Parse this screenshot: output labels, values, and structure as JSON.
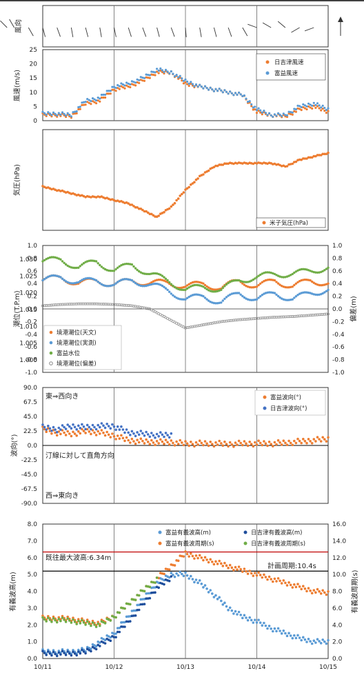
{
  "chart_data": [
    {
      "type": "wind-direction",
      "ylabel": "風向",
      "days": [
        "10/11",
        "10/12",
        "10/13",
        "10/14",
        "10/15"
      ],
      "arrows": [
        {
          "d": 10.3,
          "deg": 200
        },
        {
          "d": 10.5,
          "deg": 225
        },
        {
          "d": 10.6,
          "deg": 240
        },
        {
          "d": 10.8,
          "deg": 60
        },
        {
          "d": 11.0,
          "deg": 75
        },
        {
          "d": 11.2,
          "deg": 70
        },
        {
          "d": 11.4,
          "deg": 80
        },
        {
          "d": 11.6,
          "deg": 75
        },
        {
          "d": 11.8,
          "deg": 80
        },
        {
          "d": 12.0,
          "deg": 78
        },
        {
          "d": 12.2,
          "deg": 72
        },
        {
          "d": 12.4,
          "deg": 70
        },
        {
          "d": 12.6,
          "deg": 75
        },
        {
          "d": 12.8,
          "deg": 70
        },
        {
          "d": 13.0,
          "deg": 85
        },
        {
          "d": 13.2,
          "deg": 80
        },
        {
          "d": 13.4,
          "deg": 75
        },
        {
          "d": 13.6,
          "deg": 70
        },
        {
          "d": 13.8,
          "deg": 60
        },
        {
          "d": 14.0,
          "deg": 200
        },
        {
          "d": 14.2,
          "deg": 210
        },
        {
          "d": 14.4,
          "deg": 220
        },
        {
          "d": 14.6,
          "deg": 150
        },
        {
          "d": 14.8,
          "deg": 160
        }
      ]
    },
    {
      "type": "scatter",
      "ylabel": "風速(m/s)",
      "ylim": [
        0,
        25
      ],
      "yticks": [
        0,
        5,
        10,
        15,
        20,
        25
      ],
      "legend": [
        "日吉津風速",
        "富益風速"
      ],
      "series": [
        {
          "name": "日吉津風速",
          "color": "#ed7d31",
          "x": [
            11.0,
            11.2,
            11.4,
            11.6,
            11.8,
            12.0,
            12.2,
            12.4,
            12.6,
            12.8,
            13.0,
            13.2,
            13.4,
            13.6,
            13.8,
            14.0,
            14.2,
            14.4,
            14.6,
            14.8,
            15.0
          ],
          "y": [
            2,
            2,
            1.5,
            6,
            7,
            11,
            12,
            14,
            17,
            17,
            13,
            12,
            11,
            10,
            9,
            3,
            2,
            1.5,
            4,
            5,
            3
          ]
        },
        {
          "name": "富益風速",
          "color": "#5b9bd5",
          "x": [
            11.0,
            11.2,
            11.4,
            11.6,
            11.8,
            12.0,
            12.2,
            12.4,
            12.6,
            12.8,
            13.0,
            13.2,
            13.4,
            13.6,
            13.8,
            14.0,
            14.2,
            14.4,
            14.6,
            14.8,
            15.0
          ],
          "y": [
            2.5,
            2.5,
            2,
            7,
            8,
            12,
            13,
            15,
            18,
            17,
            14,
            12,
            11,
            10,
            9,
            4,
            2,
            2,
            5,
            6,
            4
          ]
        }
      ]
    },
    {
      "type": "scatter",
      "ylabel": "気圧(hPa)",
      "ylim": [
        1000,
        1030
      ],
      "yticks": [
        "1.000",
        "1.005",
        "1.010",
        "1.015",
        "1.020",
        "1.025",
        "1.030"
      ],
      "legend": [
        "米子気圧(hPa)"
      ],
      "series": [
        {
          "name": "米子気圧(hPa)",
          "color": "#ed7d31",
          "x": [
            11.0,
            11.2,
            11.4,
            11.6,
            11.8,
            12.0,
            12.2,
            12.4,
            12.6,
            12.8,
            13.0,
            13.2,
            13.4,
            13.6,
            13.8,
            14.0,
            14.2,
            14.4,
            14.6,
            14.8,
            15.0
          ],
          "y": [
            1013,
            1012,
            1011,
            1010,
            1010,
            1009,
            1008,
            1006,
            1004,
            1007,
            1012,
            1016,
            1019,
            1020,
            1020,
            1020,
            1020,
            1019,
            1021,
            1022,
            1023
          ]
        }
      ]
    },
    {
      "type": "scatter",
      "ylabel": "潮位(T.P.m)",
      "ylabel2": "偏差(m)",
      "ylim": [
        -1.0,
        1.0
      ],
      "yticks": [
        "-1.0",
        "-0.8",
        "-0.6",
        "-0.4",
        "-0.2",
        "0.0",
        "0.2",
        "0.4",
        "0.6",
        "0.8",
        "1.0"
      ],
      "legend": [
        "境港潮位(天文)",
        "境港潮位(実測)",
        "富益水位",
        "境港潮位(偏差)"
      ],
      "series": [
        {
          "name": "境港潮位(天文)",
          "color": "#ed7d31",
          "x": [
            11.0,
            11.25,
            11.5,
            11.75,
            12.0,
            12.25,
            12.5,
            12.75,
            13.0,
            13.25,
            13.5,
            13.75,
            14.0,
            14.25,
            14.5,
            14.75,
            15.0
          ],
          "y": [
            0.45,
            0.5,
            0.4,
            0.45,
            0.38,
            0.45,
            0.4,
            0.42,
            0.35,
            0.4,
            0.32,
            0.45,
            0.35,
            0.45,
            0.35,
            0.45,
            0.4
          ]
        },
        {
          "name": "境港潮位(実測)",
          "color": "#5b9bd5",
          "x": [
            11.0,
            11.25,
            11.5,
            11.75,
            12.0,
            12.25,
            12.5,
            12.75,
            13.0,
            13.25,
            13.5,
            13.75,
            14.0,
            14.25,
            14.5,
            14.75,
            15.0
          ],
          "y": [
            0.45,
            0.5,
            0.42,
            0.45,
            0.38,
            0.45,
            0.38,
            0.3,
            0.15,
            0.2,
            0.1,
            0.25,
            0.15,
            0.25,
            0.15,
            0.25,
            0.3
          ]
        },
        {
          "name": "富益水位",
          "color": "#70ad47",
          "x": [
            11.0,
            11.25,
            11.5,
            11.75,
            12.0,
            12.25,
            12.5,
            12.75,
            13.0,
            13.25,
            13.5,
            13.75,
            14.0,
            14.25,
            14.5,
            14.75,
            15.0
          ],
          "y": [
            0.75,
            0.78,
            0.65,
            0.75,
            0.6,
            0.7,
            0.55,
            0.45,
            0.3,
            0.35,
            0.3,
            0.45,
            0.5,
            0.55,
            0.55,
            0.6,
            0.65
          ]
        },
        {
          "name": "境港潮位(偏差)",
          "color": "#888888",
          "x": [
            11.0,
            11.25,
            11.5,
            11.75,
            12.0,
            12.25,
            12.5,
            12.75,
            13.0,
            13.25,
            13.5,
            13.75,
            14.0,
            14.25,
            14.5,
            14.75,
            15.0
          ],
          "y": [
            0.05,
            0.07,
            0.08,
            0.08,
            0.07,
            0.05,
            0.0,
            -0.15,
            -0.3,
            -0.25,
            -0.2,
            -0.17,
            -0.15,
            -0.13,
            -0.12,
            -0.1,
            -0.08
          ]
        }
      ]
    },
    {
      "type": "scatter",
      "ylabel": "波向(°)",
      "ylim": [
        -90,
        90
      ],
      "yticks": [
        "-90.0",
        "-67.5",
        "-45.0",
        "-22.5",
        "0.0",
        "22.5",
        "45.0",
        "67.5",
        "90.0"
      ],
      "legend": [
        "富益波向(°)",
        "日吉津波向(°)"
      ],
      "annotations": [
        "東⇒西向き",
        "汀線に対して直角方向",
        "西⇒東向き"
      ],
      "series": [
        {
          "name": "富益波向(°)",
          "color": "#ed7d31",
          "x": [
            11.0,
            11.2,
            11.4,
            11.6,
            11.8,
            12.0,
            12.2,
            12.4,
            12.6,
            12.8,
            13.0,
            13.2,
            13.4,
            13.6,
            13.8,
            14.0,
            14.2,
            14.4,
            14.6,
            14.8,
            15.0
          ],
          "y": [
            25,
            20,
            18,
            22,
            20,
            15,
            8,
            6,
            5,
            5,
            3,
            3,
            3,
            2,
            3,
            3,
            3,
            4,
            6,
            8,
            10
          ]
        },
        {
          "name": "日吉津波向(°)",
          "color": "#4472c4",
          "x": [
            11.0,
            11.2,
            11.4,
            11.6,
            11.8,
            12.0,
            12.2,
            12.4,
            12.6,
            12.8
          ],
          "y": [
            28,
            25,
            30,
            28,
            30,
            30,
            20,
            18,
            16,
            16
          ]
        }
      ]
    },
    {
      "type": "scatter",
      "ylabel": "有義波高(m)",
      "ylabel2": "有義波周期(s)",
      "ylim": [
        0,
        8
      ],
      "y2lim": [
        0,
        16
      ],
      "yticks": [
        "0.0",
        "1.0",
        "2.0",
        "3.0",
        "4.0",
        "5.0",
        "6.0",
        "7.0",
        "8.0"
      ],
      "y2ticks": [
        "0.0",
        "2.0",
        "4.0",
        "6.0",
        "8.0",
        "10.0",
        "12.0",
        "14.0",
        "16.0"
      ],
      "xlabels": [
        "10/11",
        "10/12",
        "10/13",
        "10/14",
        "10/15"
      ],
      "legend": [
        "富益有義波高(m)",
        "日吉津有義波高(m)",
        "富益有義波周期(s)",
        "日吉津有義波周期(s)"
      ],
      "annotations": [
        "既往最大波高:6.34m",
        "計画周期:10.4s"
      ],
      "ref_lines": [
        {
          "label": "既往最大波高:6.34m",
          "y": 6.34,
          "color": "#c00000"
        },
        {
          "label": "計画周期:10.4s",
          "y2": 10.4,
          "color": "#000000"
        }
      ],
      "series": [
        {
          "name": "富益有義波高(m)",
          "color": "#5b9bd5",
          "x": [
            11.0,
            11.2,
            11.4,
            11.6,
            11.8,
            12.0,
            12.2,
            12.4,
            12.6,
            12.8,
            13.0,
            13.2,
            13.4,
            13.6,
            13.8,
            14.0,
            14.2,
            14.4,
            14.6,
            14.8,
            15.0
          ],
          "y": [
            0.4,
            0.4,
            0.4,
            0.5,
            1.0,
            1.5,
            2.5,
            3.5,
            4.5,
            5.0,
            5.0,
            4.5,
            3.8,
            3.0,
            2.5,
            2.2,
            1.8,
            1.5,
            1.2,
            1.0,
            1.0
          ]
        },
        {
          "name": "日吉津有義波高(m)",
          "color": "#1f4e9c",
          "x": [
            11.0,
            11.2,
            11.4,
            11.6,
            11.8,
            12.0,
            12.2,
            12.4,
            12.6,
            12.8
          ],
          "y": [
            0.3,
            0.3,
            0.3,
            0.4,
            0.8,
            1.3,
            2.2,
            3.2,
            4.2,
            4.8
          ]
        },
        {
          "name": "富益有義波周期(s)",
          "color": "#ed7d31",
          "x": [
            11.0,
            11.2,
            11.4,
            11.6,
            11.8,
            12.0,
            12.2,
            12.4,
            12.6,
            12.8,
            13.0,
            13.2,
            13.4,
            13.6,
            13.8,
            14.0,
            14.2,
            14.4,
            14.6,
            14.8,
            15.0
          ],
          "y": [
            4.8,
            4.8,
            4.7,
            4.4,
            4.2,
            5.0,
            6.5,
            8.0,
            9.5,
            11.0,
            12.5,
            12.0,
            11.5,
            11.0,
            10.5,
            10.0,
            9.5,
            9.0,
            8.5,
            8.0,
            7.8
          ]
        },
        {
          "name": "日吉津有義波周期(s)",
          "color": "#70ad47",
          "x": [
            11.0,
            11.2,
            11.4,
            11.6,
            11.8,
            12.0,
            12.2,
            12.4,
            12.6
          ],
          "y": [
            4.6,
            4.6,
            4.5,
            4.2,
            4.0,
            5.0,
            6.5,
            8.0,
            9.5
          ]
        }
      ]
    }
  ]
}
